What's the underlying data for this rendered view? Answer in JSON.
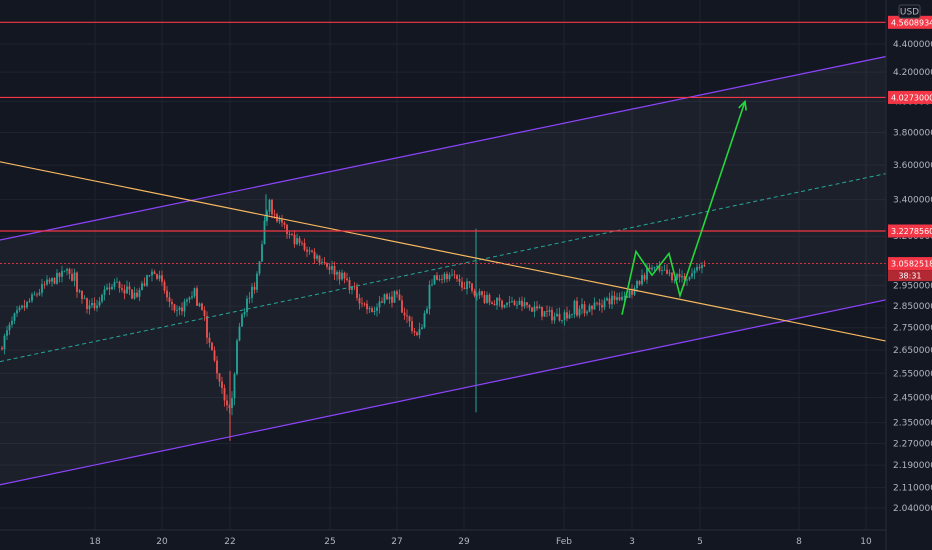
{
  "currency_label": "USD",
  "countdown": "38:31",
  "colors": {
    "background": "#131722",
    "grid": "#1f2330",
    "bull": "#26a69a",
    "bear": "#ef5350",
    "level_line": "#f23645",
    "channel": "#8e44ff",
    "channel_mid": "#26a69a",
    "trendline": "#f7b960",
    "projection": "#22d83a",
    "current_price_tag": "#f23645"
  },
  "chart_data": {
    "type": "candlestick",
    "title": "",
    "xlabel": "",
    "ylabel": "",
    "x_ticks": [
      "18",
      "20",
      "22",
      "25",
      "27",
      "29",
      "Feb",
      "3",
      "5",
      "8",
      "10"
    ],
    "y_ticks": [
      "4.4000000",
      "4.2000000",
      "4.0000000",
      "3.8000000",
      "3.6000000",
      "3.4000000",
      "3.2000000",
      "3.0000000",
      "2.9500000",
      "2.8500000",
      "2.7500000",
      "2.6500000",
      "2.5500000",
      "2.4500000",
      "2.3500000",
      "2.2700000",
      "2.1900000",
      "2.1100000",
      "2.0400000"
    ],
    "log_scale": true,
    "grid": true,
    "horizontal_levels": [
      "4.5608934",
      "4.0273000",
      "3.2278560"
    ],
    "current_price": "3.0582518",
    "price_waypoints": [
      [
        0,
        2.66
      ],
      [
        15,
        2.8
      ],
      [
        45,
        2.95
      ],
      [
        68,
        3.02
      ],
      [
        90,
        2.83
      ],
      [
        115,
        2.96
      ],
      [
        135,
        2.9
      ],
      [
        155,
        3.03
      ],
      [
        175,
        2.8
      ],
      [
        195,
        2.93
      ],
      [
        213,
        2.62
      ],
      [
        230,
        2.38
      ],
      [
        240,
        2.8
      ],
      [
        255,
        2.95
      ],
      [
        268,
        3.35
      ],
      [
        290,
        3.2
      ],
      [
        315,
        3.1
      ],
      [
        345,
        2.98
      ],
      [
        370,
        2.82
      ],
      [
        395,
        2.9
      ],
      [
        418,
        2.7
      ],
      [
        435,
        3.0
      ],
      [
        460,
        2.97
      ],
      [
        490,
        2.87
      ],
      [
        520,
        2.86
      ],
      [
        555,
        2.8
      ],
      [
        585,
        2.84
      ],
      [
        610,
        2.88
      ],
      [
        633,
        2.92
      ],
      [
        650,
        3.04
      ],
      [
        670,
        3.0
      ],
      [
        688,
        2.99
      ],
      [
        705,
        3.07
      ]
    ],
    "annotations": {
      "channel": {
        "upper": [
          [
            0,
            3.18
          ],
          [
            886,
            4.31
          ]
        ],
        "lower": [
          [
            0,
            2.12
          ],
          [
            886,
            2.88
          ]
        ],
        "mid": [
          [
            0,
            2.6
          ],
          [
            886,
            3.55
          ]
        ]
      },
      "trendline": [
        [
          0,
          3.62
        ],
        [
          886,
          2.69
        ]
      ],
      "projection_path": [
        [
          622,
          2.81
        ],
        [
          636,
          3.12
        ],
        [
          652,
          3.0
        ],
        [
          669,
          3.11
        ],
        [
          680,
          2.9
        ],
        [
          745,
          4.0
        ]
      ]
    }
  }
}
